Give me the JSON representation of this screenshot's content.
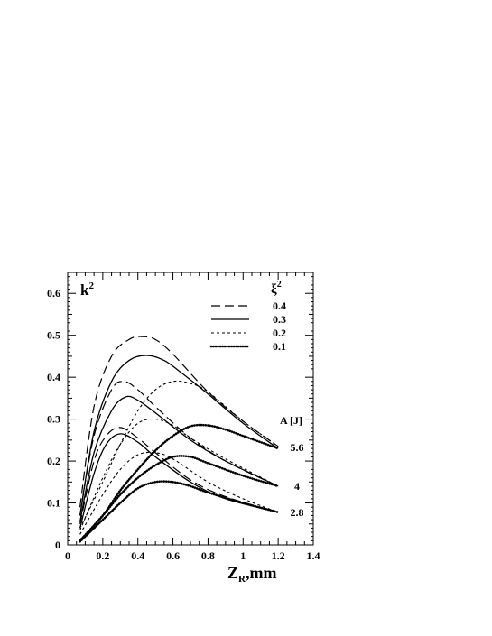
{
  "chart_data": {
    "type": "line",
    "title": "",
    "xlabel_main": "Z",
    "xlabel_sub": "R",
    "xlabel_tail": ",mm",
    "ylabel_main": "k",
    "ylabel_sup": "2",
    "xlim": [
      0,
      1.4
    ],
    "ylim": [
      0,
      0.65
    ],
    "x_ticks": [
      "0",
      "0.2",
      "0.4",
      "0.6",
      "0.8",
      "1",
      "1.2",
      "1.4"
    ],
    "y_ticks": [
      "0",
      "0.1",
      "0.2",
      "0.3",
      "0.4",
      "0.5",
      "0.6"
    ],
    "grid": false,
    "legend": {
      "title_main": "ξ",
      "title_sup": "2",
      "placement": "top-right",
      "entries": [
        {
          "label": "0.4",
          "style": "long-dash"
        },
        {
          "label": "0.3",
          "style": "solid"
        },
        {
          "label": "0.2",
          "style": "short-dash"
        },
        {
          "label": "0.1",
          "style": "dotted"
        }
      ]
    },
    "energy_label": "A [J]",
    "energy_values": [
      "5.6",
      "4",
      "2.8"
    ],
    "series": [
      {
        "xi2": "0.4",
        "energy": "5.6",
        "style": "long-dash",
        "x": [
          0.07,
          0.15,
          0.25,
          0.35,
          0.42,
          0.5,
          0.6,
          0.8,
          1.0,
          1.2
        ],
        "y": [
          0.09,
          0.33,
          0.45,
          0.49,
          0.497,
          0.49,
          0.455,
          0.365,
          0.295,
          0.235
        ]
      },
      {
        "xi2": "0.3",
        "energy": "5.6",
        "style": "solid",
        "x": [
          0.07,
          0.15,
          0.25,
          0.35,
          0.45,
          0.55,
          0.65,
          0.8,
          1.0,
          1.2
        ],
        "y": [
          0.07,
          0.27,
          0.39,
          0.44,
          0.452,
          0.44,
          0.41,
          0.36,
          0.29,
          0.23
        ]
      },
      {
        "xi2": "0.2",
        "energy": "5.6",
        "style": "short-dash",
        "x": [
          0.07,
          0.2,
          0.3,
          0.4,
          0.5,
          0.6,
          0.7,
          0.8,
          1.0,
          1.2
        ],
        "y": [
          0.04,
          0.15,
          0.24,
          0.32,
          0.37,
          0.39,
          0.385,
          0.365,
          0.295,
          0.235
        ]
      },
      {
        "xi2": "0.1",
        "energy": "5.6",
        "style": "dotted",
        "x": [
          0.07,
          0.2,
          0.3,
          0.4,
          0.5,
          0.6,
          0.7,
          0.8,
          0.9,
          1.0,
          1.2
        ],
        "y": [
          0.01,
          0.07,
          0.13,
          0.18,
          0.225,
          0.26,
          0.283,
          0.285,
          0.275,
          0.26,
          0.23
        ]
      },
      {
        "xi2": "0.4",
        "energy": "4",
        "style": "long-dash",
        "x": [
          0.07,
          0.15,
          0.25,
          0.32,
          0.4,
          0.5,
          0.7,
          0.9,
          1.2
        ],
        "y": [
          0.07,
          0.26,
          0.37,
          0.39,
          0.37,
          0.33,
          0.255,
          0.2,
          0.14
        ]
      },
      {
        "xi2": "0.3",
        "energy": "4",
        "style": "solid",
        "x": [
          0.07,
          0.15,
          0.25,
          0.33,
          0.4,
          0.5,
          0.7,
          0.9,
          1.2
        ],
        "y": [
          0.055,
          0.22,
          0.32,
          0.353,
          0.345,
          0.315,
          0.25,
          0.2,
          0.14
        ]
      },
      {
        "xi2": "0.2",
        "energy": "4",
        "style": "short-dash",
        "x": [
          0.07,
          0.2,
          0.3,
          0.4,
          0.5,
          0.6,
          0.7,
          0.9,
          1.2
        ],
        "y": [
          0.035,
          0.16,
          0.24,
          0.29,
          0.3,
          0.285,
          0.255,
          0.205,
          0.14
        ]
      },
      {
        "xi2": "0.1",
        "energy": "4",
        "style": "dotted",
        "x": [
          0.07,
          0.2,
          0.3,
          0.4,
          0.5,
          0.6,
          0.7,
          0.8,
          1.0,
          1.2
        ],
        "y": [
          0.01,
          0.07,
          0.12,
          0.16,
          0.19,
          0.21,
          0.21,
          0.195,
          0.165,
          0.14
        ]
      },
      {
        "xi2": "0.4",
        "energy": "2.8",
        "style": "long-dash",
        "x": [
          0.07,
          0.15,
          0.22,
          0.3,
          0.4,
          0.5,
          0.7,
          0.9,
          1.2
        ],
        "y": [
          0.05,
          0.2,
          0.26,
          0.28,
          0.255,
          0.22,
          0.155,
          0.115,
          0.078
        ]
      },
      {
        "xi2": "0.3",
        "energy": "2.8",
        "style": "solid",
        "x": [
          0.07,
          0.15,
          0.22,
          0.3,
          0.4,
          0.5,
          0.7,
          0.9,
          1.2
        ],
        "y": [
          0.04,
          0.17,
          0.24,
          0.265,
          0.245,
          0.21,
          0.15,
          0.11,
          0.078
        ]
      },
      {
        "xi2": "0.2",
        "energy": "2.8",
        "style": "short-dash",
        "x": [
          0.07,
          0.2,
          0.3,
          0.4,
          0.5,
          0.6,
          0.8,
          1.0,
          1.2
        ],
        "y": [
          0.025,
          0.12,
          0.18,
          0.215,
          0.22,
          0.205,
          0.15,
          0.11,
          0.078
        ]
      },
      {
        "xi2": "0.1",
        "energy": "2.8",
        "style": "dotted",
        "x": [
          0.07,
          0.2,
          0.3,
          0.4,
          0.5,
          0.6,
          0.7,
          0.8,
          1.0,
          1.2
        ],
        "y": [
          0.008,
          0.06,
          0.1,
          0.135,
          0.15,
          0.15,
          0.14,
          0.125,
          0.1,
          0.078
        ]
      }
    ]
  }
}
